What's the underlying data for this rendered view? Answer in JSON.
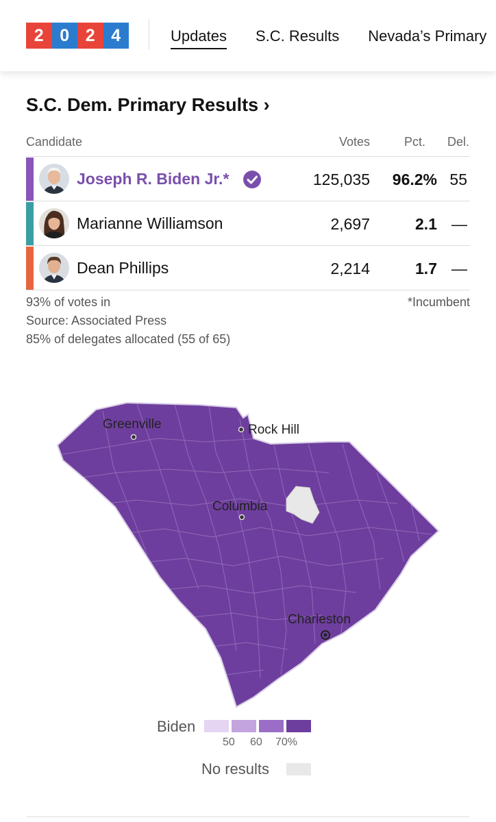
{
  "logo": {
    "digits": [
      "2",
      "0",
      "2",
      "4"
    ],
    "colors": [
      "#e8443a",
      "#2b7ccf",
      "#e8443a",
      "#2b7ccf"
    ]
  },
  "nav": {
    "items": [
      {
        "label": "Updates",
        "active": true
      },
      {
        "label": "S.C. Results",
        "active": false
      },
      {
        "label": "Nevada’s Primary",
        "active": false
      }
    ]
  },
  "results": {
    "title": "S.C. Dem. Primary Results ›",
    "headers": {
      "candidate": "Candidate",
      "votes": "Votes",
      "pct": "Pct.",
      "del": "Del."
    },
    "candidates": [
      {
        "name": "Joseph R. Biden Jr.*",
        "votes": "125,035",
        "pct": "96.2%",
        "del": "55",
        "color": "#8a55b8",
        "winner": true,
        "avatar_icon": "biden-avatar-icon"
      },
      {
        "name": "Marianne Williamson",
        "votes": "2,697",
        "pct": "2.1",
        "del": "—",
        "color": "#3a9ea5",
        "winner": false,
        "avatar_icon": "williamson-avatar-icon"
      },
      {
        "name": "Dean Phillips",
        "votes": "2,214",
        "pct": "1.7",
        "del": "—",
        "color": "#e8663d",
        "winner": false,
        "avatar_icon": "phillips-avatar-icon"
      }
    ],
    "votes_in": "93% of votes in",
    "source": "Source: Associated Press",
    "delegates": "85% of delegates allocated (55 of 65)",
    "incumbent_note": "*Incumbent"
  },
  "map": {
    "cities": [
      "Greenville",
      "Rock Hill",
      "Columbia",
      "Charleston"
    ],
    "fill_color": "#6e3e9e",
    "no_results_color": "#e8e8e8"
  },
  "legend": {
    "title": "Biden",
    "swatch_colors": [
      "#e5d5f3",
      "#c3a4de",
      "#9a6ec7",
      "#6e3e9e"
    ],
    "ticks": [
      "50",
      "60",
      "70%"
    ],
    "no_results_label": "No results",
    "no_results_color": "#e8e8e8"
  }
}
